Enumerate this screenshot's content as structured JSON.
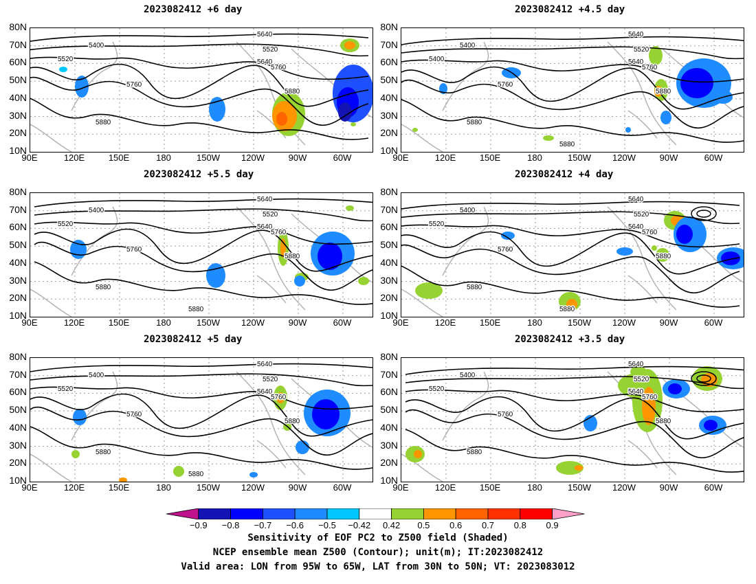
{
  "panels": [
    {
      "title": "2023082412 +6 day",
      "contour_labels": [
        "5400",
        "5520",
        "5640",
        "5520",
        "5640",
        "5760",
        "5760",
        "5880",
        "5880"
      ]
    },
    {
      "title": "2023082412 +4.5 day",
      "contour_labels": [
        "5400",
        "5400",
        "5640",
        "5520",
        "5640",
        "5760",
        "5760",
        "5880",
        "5880",
        "5880"
      ]
    },
    {
      "title": "2023082412 +5.5 day",
      "contour_labels": [
        "5400",
        "5520",
        "5640",
        "5520",
        "5640",
        "5760",
        "5760",
        "5880",
        "5880",
        "5880"
      ]
    },
    {
      "title": "2023082412 +4 day",
      "contour_labels": [
        "5400",
        "5520",
        "5640",
        "5520",
        "5640",
        "5760",
        "5760",
        "5880",
        "5880",
        "5880"
      ]
    },
    {
      "title": "2023082412 +5 day",
      "contour_labels": [
        "5400",
        "5520",
        "5640",
        "5520",
        "5640",
        "5760",
        "5760",
        "5880",
        "5880",
        "5880"
      ]
    },
    {
      "title": "2023082412 +3.5 day",
      "contour_labels": [
        "5400",
        "5520",
        "5640",
        "5520",
        "5640",
        "5760",
        "5760",
        "5880",
        "5880"
      ]
    }
  ],
  "y_ticks": [
    "80N",
    "70N",
    "60N",
    "50N",
    "40N",
    "30N",
    "20N",
    "10N"
  ],
  "x_ticks": [
    "90E",
    "120E",
    "150E",
    "180",
    "150W",
    "120W",
    "90W",
    "60W"
  ],
  "colorbar": {
    "colors": [
      "#c0148c",
      "#1414b4",
      "#0000ff",
      "#1e50ff",
      "#1e8cff",
      "#00c8ff",
      "#ffffff",
      "#96d232",
      "#ff9600",
      "#ff6400",
      "#ff3200",
      "#ff0000",
      "#ffa0c8"
    ],
    "ticks": [
      "−0.9",
      "−0.8",
      "−0.7",
      "−0.6",
      "−0.5",
      "−0.42",
      "0.42",
      "0.5",
      "0.6",
      "0.7",
      "0.8",
      "0.9"
    ]
  },
  "caption": {
    "line1": "Sensitivity of EOF PC2 to Z500 field (Shaded)",
    "line2": "NCEP ensemble mean Z500 (Contour); unit(m); IT:2023082412",
    "line3": "Valid area: LON from 95W to 65W, LAT from 30N to 50N; VT: 2023083012"
  },
  "chart_data": {
    "type": "heatmap",
    "variable": "Sensitivity of EOF PC2 to Z500 field (Shaded)",
    "contour_variable": "NCEP ensemble mean Z500 (Contour); unit(m)",
    "x_ticks": [
      "90E",
      "120E",
      "150E",
      "180",
      "150W",
      "120W",
      "90W",
      "60W"
    ],
    "y_ticks": [
      "10N",
      "20N",
      "30N",
      "40N",
      "50N",
      "60N",
      "70N",
      "80N"
    ],
    "contour_levels": [
      5400,
      5520,
      5640,
      5760,
      5880
    ],
    "shading_levels": [
      -0.9,
      -0.8,
      -0.7,
      -0.6,
      -0.5,
      -0.42,
      0.42,
      0.5,
      0.6,
      0.7,
      0.8,
      0.9
    ],
    "valid_area": {
      "lon": [
        "95W",
        "65W"
      ],
      "lat": [
        "30N",
        "50N"
      ]
    },
    "panels": [
      "+6 day",
      "+4.5 day",
      "+5.5 day",
      "+4 day",
      "+5 day",
      "+3.5 day"
    ]
  }
}
